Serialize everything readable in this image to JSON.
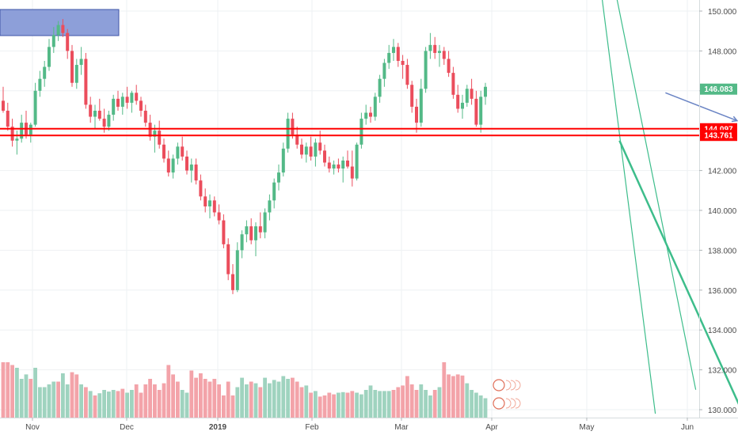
{
  "chart_data": {
    "type": "candlestick",
    "title": "",
    "xlabel": "",
    "ylabel": "",
    "ylim": [
      129.5,
      150.5
    ],
    "y_ticks": [
      "150.000",
      "148.000",
      "146.000",
      "144.000",
      "142.000",
      "140.000",
      "138.000",
      "136.000",
      "134.000",
      "132.000",
      "130.000"
    ],
    "x_ticks": [
      "Nov",
      "Dec",
      "2019",
      "Feb",
      "Mar",
      "Apr",
      "May",
      "Jun"
    ],
    "grid": true,
    "colors": {
      "up": "#53b987",
      "down": "#eb4d5c",
      "vol_up": "#9fd3bf",
      "vol_down": "#f3a3a9",
      "support": "#ff0000",
      "trendline": "#3dbd8b",
      "arrow": "#6a84c4",
      "box": "#8d9fd9"
    },
    "candles": [
      [
        145.5,
        146.2,
        144.9,
        145.0
      ],
      [
        145.0,
        145.4,
        144.0,
        144.2
      ],
      [
        144.2,
        144.6,
        143.2,
        143.5
      ],
      [
        143.5,
        144.0,
        142.8,
        143.6
      ],
      [
        143.6,
        144.8,
        143.4,
        144.4
      ],
      [
        144.4,
        145.0,
        143.6,
        143.8
      ],
      [
        143.8,
        144.4,
        143.4,
        144.3
      ],
      [
        144.3,
        146.4,
        144.2,
        146.0
      ],
      [
        146.0,
        147.0,
        145.7,
        146.6
      ],
      [
        146.6,
        147.5,
        146.2,
        147.2
      ],
      [
        147.2,
        148.6,
        147.0,
        148.2
      ],
      [
        148.2,
        149.2,
        147.9,
        148.8
      ],
      [
        148.8,
        149.5,
        148.5,
        149.3
      ],
      [
        149.3,
        149.6,
        148.7,
        148.9
      ],
      [
        148.9,
        149.1,
        147.6,
        148.0
      ],
      [
        148.0,
        148.3,
        146.2,
        146.4
      ],
      [
        146.4,
        147.6,
        146.1,
        147.3
      ],
      [
        147.3,
        148.2,
        146.8,
        147.6
      ],
      [
        147.6,
        147.9,
        145.1,
        145.3
      ],
      [
        145.3,
        145.7,
        144.4,
        144.7
      ],
      [
        144.7,
        145.3,
        144.1,
        145.0
      ],
      [
        145.0,
        145.6,
        144.5,
        144.6
      ],
      [
        144.6,
        145.1,
        143.9,
        144.2
      ],
      [
        144.2,
        145.0,
        144.0,
        144.8
      ],
      [
        144.8,
        145.8,
        144.5,
        145.6
      ],
      [
        145.6,
        146.0,
        145.0,
        145.2
      ],
      [
        145.2,
        145.9,
        144.8,
        145.7
      ],
      [
        145.7,
        146.2,
        145.1,
        145.4
      ],
      [
        145.4,
        146.0,
        144.9,
        145.9
      ],
      [
        145.9,
        146.3,
        145.3,
        145.5
      ],
      [
        145.5,
        145.7,
        144.7,
        145.0
      ],
      [
        145.0,
        145.3,
        144.2,
        144.4
      ],
      [
        144.4,
        144.8,
        143.5,
        143.7
      ],
      [
        143.7,
        144.3,
        142.9,
        144.0
      ],
      [
        144.0,
        144.5,
        143.1,
        143.3
      ],
      [
        143.3,
        143.6,
        142.4,
        142.6
      ],
      [
        142.6,
        143.0,
        141.7,
        141.9
      ],
      [
        141.9,
        142.8,
        141.6,
        142.6
      ],
      [
        142.6,
        143.4,
        142.3,
        143.2
      ],
      [
        143.2,
        143.7,
        142.5,
        142.7
      ],
      [
        142.7,
        143.0,
        141.8,
        142.0
      ],
      [
        142.0,
        142.6,
        141.4,
        142.3
      ],
      [
        142.3,
        142.6,
        141.3,
        141.5
      ],
      [
        141.5,
        141.8,
        140.5,
        140.7
      ],
      [
        140.7,
        141.1,
        139.9,
        140.2
      ],
      [
        140.2,
        140.8,
        139.6,
        140.5
      ],
      [
        140.5,
        140.7,
        139.7,
        139.9
      ],
      [
        139.9,
        140.3,
        139.3,
        139.5
      ],
      [
        139.5,
        139.8,
        138.1,
        138.3
      ],
      [
        138.3,
        138.6,
        136.5,
        136.8
      ],
      [
        136.8,
        137.3,
        135.8,
        136.0
      ],
      [
        136.0,
        138.4,
        135.9,
        138.0
      ],
      [
        138.0,
        139.0,
        137.6,
        138.8
      ],
      [
        138.8,
        139.5,
        138.4,
        139.2
      ],
      [
        139.2,
        139.6,
        138.3,
        138.5
      ],
      [
        138.5,
        139.4,
        137.7,
        139.2
      ],
      [
        139.2,
        139.9,
        138.6,
        138.9
      ],
      [
        138.9,
        140.1,
        138.6,
        139.9
      ],
      [
        139.9,
        140.8,
        139.5,
        140.5
      ],
      [
        140.5,
        141.6,
        140.1,
        141.4
      ],
      [
        141.4,
        142.3,
        141.0,
        141.9
      ],
      [
        141.9,
        143.4,
        141.7,
        143.1
      ],
      [
        143.1,
        144.9,
        142.9,
        144.6
      ],
      [
        144.6,
        144.9,
        143.6,
        143.8
      ],
      [
        143.8,
        144.2,
        143.1,
        143.3
      ],
      [
        143.3,
        143.6,
        142.6,
        142.8
      ],
      [
        142.8,
        143.4,
        142.4,
        143.2
      ],
      [
        143.2,
        143.7,
        142.5,
        142.7
      ],
      [
        142.7,
        143.6,
        142.2,
        143.4
      ],
      [
        143.4,
        144.0,
        142.8,
        143.0
      ],
      [
        143.0,
        143.3,
        142.2,
        142.4
      ],
      [
        142.4,
        142.7,
        141.9,
        142.1
      ],
      [
        142.1,
        142.5,
        141.8,
        142.3
      ],
      [
        142.3,
        142.6,
        141.9,
        142.1
      ],
      [
        142.1,
        142.7,
        141.4,
        142.5
      ],
      [
        142.5,
        143.0,
        142.1,
        142.2
      ],
      [
        142.2,
        143.0,
        141.2,
        141.6
      ],
      [
        141.6,
        143.4,
        141.5,
        143.3
      ],
      [
        143.3,
        144.9,
        143.1,
        144.6
      ],
      [
        144.6,
        145.3,
        144.3,
        144.9
      ],
      [
        144.9,
        145.2,
        144.4,
        144.7
      ],
      [
        144.7,
        145.9,
        144.5,
        145.7
      ],
      [
        145.7,
        146.8,
        145.4,
        146.6
      ],
      [
        146.6,
        147.6,
        146.2,
        147.4
      ],
      [
        147.4,
        148.3,
        147.1,
        147.9
      ],
      [
        147.9,
        148.6,
        147.5,
        148.2
      ],
      [
        148.2,
        148.4,
        147.2,
        147.5
      ],
      [
        147.5,
        147.8,
        146.6,
        147.3
      ],
      [
        147.3,
        147.6,
        146.1,
        146.3
      ],
      [
        146.3,
        146.5,
        144.9,
        145.2
      ],
      [
        145.2,
        145.6,
        143.9,
        144.4
      ],
      [
        144.4,
        146.6,
        144.2,
        146.1
      ],
      [
        146.1,
        148.2,
        145.9,
        148.0
      ],
      [
        148.0,
        148.9,
        147.6,
        148.3
      ],
      [
        148.3,
        148.7,
        147.6,
        147.9
      ],
      [
        147.9,
        148.3,
        147.2,
        148.0
      ],
      [
        148.0,
        148.2,
        147.3,
        147.6
      ],
      [
        147.6,
        148.0,
        146.7,
        146.9
      ],
      [
        146.9,
        147.2,
        145.6,
        145.8
      ],
      [
        145.8,
        146.3,
        144.9,
        145.1
      ],
      [
        145.1,
        145.8,
        144.6,
        145.4
      ],
      [
        145.4,
        146.3,
        145.2,
        146.1
      ],
      [
        146.1,
        146.6,
        145.3,
        145.6
      ],
      [
        145.6,
        146.0,
        144.2,
        144.3
      ],
      [
        144.3,
        146.0,
        143.9,
        145.7
      ],
      [
        145.7,
        146.4,
        145.3,
        146.2
      ]
    ],
    "volume": [
      [
        1.0,
        "d"
      ],
      [
        1.0,
        "d"
      ],
      [
        0.95,
        "d"
      ],
      [
        0.9,
        "u"
      ],
      [
        0.7,
        "u"
      ],
      [
        0.78,
        "u"
      ],
      [
        0.7,
        "d"
      ],
      [
        0.9,
        "u"
      ],
      [
        0.55,
        "u"
      ],
      [
        0.55,
        "u"
      ],
      [
        0.6,
        "u"
      ],
      [
        0.65,
        "u"
      ],
      [
        0.65,
        "d"
      ],
      [
        0.8,
        "u"
      ],
      [
        0.6,
        "u"
      ],
      [
        0.82,
        "d"
      ],
      [
        0.78,
        "d"
      ],
      [
        0.6,
        "u"
      ],
      [
        0.55,
        "d"
      ],
      [
        0.48,
        "u"
      ],
      [
        0.4,
        "d"
      ],
      [
        0.44,
        "u"
      ],
      [
        0.5,
        "u"
      ],
      [
        0.47,
        "u"
      ],
      [
        0.5,
        "u"
      ],
      [
        0.48,
        "d"
      ],
      [
        0.52,
        "d"
      ],
      [
        0.45,
        "u"
      ],
      [
        0.5,
        "u"
      ],
      [
        0.6,
        "d"
      ],
      [
        0.45,
        "d"
      ],
      [
        0.6,
        "d"
      ],
      [
        0.7,
        "d"
      ],
      [
        0.6,
        "d"
      ],
      [
        0.5,
        "d"
      ],
      [
        0.62,
        "d"
      ],
      [
        0.95,
        "d"
      ],
      [
        0.78,
        "d"
      ],
      [
        0.65,
        "d"
      ],
      [
        0.5,
        "u"
      ],
      [
        0.45,
        "u"
      ],
      [
        0.85,
        "d"
      ],
      [
        0.72,
        "d"
      ],
      [
        0.8,
        "d"
      ],
      [
        0.7,
        "d"
      ],
      [
        0.65,
        "d"
      ],
      [
        0.7,
        "d"
      ],
      [
        0.6,
        "d"
      ],
      [
        0.4,
        "d"
      ],
      [
        0.65,
        "d"
      ],
      [
        0.4,
        "d"
      ],
      [
        0.55,
        "u"
      ],
      [
        0.72,
        "u"
      ],
      [
        0.6,
        "u"
      ],
      [
        0.65,
        "d"
      ],
      [
        0.62,
        "u"
      ],
      [
        0.55,
        "d"
      ],
      [
        0.72,
        "u"
      ],
      [
        0.62,
        "u"
      ],
      [
        0.68,
        "u"
      ],
      [
        0.65,
        "u"
      ],
      [
        0.75,
        "u"
      ],
      [
        0.7,
        "u"
      ],
      [
        0.72,
        "d"
      ],
      [
        0.65,
        "d"
      ],
      [
        0.55,
        "d"
      ],
      [
        0.58,
        "u"
      ],
      [
        0.45,
        "d"
      ],
      [
        0.48,
        "u"
      ],
      [
        0.38,
        "d"
      ],
      [
        0.4,
        "d"
      ],
      [
        0.45,
        "d"
      ],
      [
        0.42,
        "d"
      ],
      [
        0.45,
        "u"
      ],
      [
        0.46,
        "u"
      ],
      [
        0.45,
        "d"
      ],
      [
        0.48,
        "d"
      ],
      [
        0.45,
        "u"
      ],
      [
        0.42,
        "u"
      ],
      [
        0.5,
        "u"
      ],
      [
        0.58,
        "u"
      ],
      [
        0.5,
        "u"
      ],
      [
        0.48,
        "u"
      ],
      [
        0.48,
        "u"
      ],
      [
        0.48,
        "u"
      ],
      [
        0.5,
        "d"
      ],
      [
        0.55,
        "d"
      ],
      [
        0.58,
        "d"
      ],
      [
        0.75,
        "d"
      ],
      [
        0.6,
        "d"
      ],
      [
        0.5,
        "d"
      ],
      [
        0.6,
        "u"
      ],
      [
        0.5,
        "u"
      ],
      [
        0.4,
        "u"
      ],
      [
        0.5,
        "d"
      ],
      [
        0.55,
        "u"
      ],
      [
        1.0,
        "d"
      ],
      [
        0.78,
        "d"
      ],
      [
        0.75,
        "d"
      ],
      [
        0.78,
        "d"
      ],
      [
        0.76,
        "d"
      ],
      [
        0.62,
        "u"
      ],
      [
        0.5,
        "u"
      ],
      [
        0.45,
        "u"
      ],
      [
        0.4,
        "u"
      ],
      [
        0.35,
        "u"
      ]
    ],
    "horizontal_levels": [
      {
        "label": "144.097",
        "value": 144.097,
        "color": "#ff0000"
      },
      {
        "label": "143.761",
        "value": 143.761,
        "color": "#ff0000"
      }
    ],
    "last_price": {
      "label": "146.083",
      "value": 146.083,
      "color": "#53b987"
    },
    "drawings": {
      "descending_channel": [
        {
          "from": [
            129.8,
            142.0
          ],
          "to": [
            151.0,
            130.2
          ]
        },
        {
          "from": [
            131.0,
            150.8
          ],
          "to": [
            155.0,
            129.8
          ]
        }
      ],
      "rising_trendline": {
        "from": [
          143.5,
          134.2
        ],
        "to": [
          129.3,
          162.1
        ]
      },
      "projection_arrow": {
        "from": [
          145.9,
          144.2
        ],
        "to": [
          144.5,
          159.8
        ]
      }
    }
  }
}
